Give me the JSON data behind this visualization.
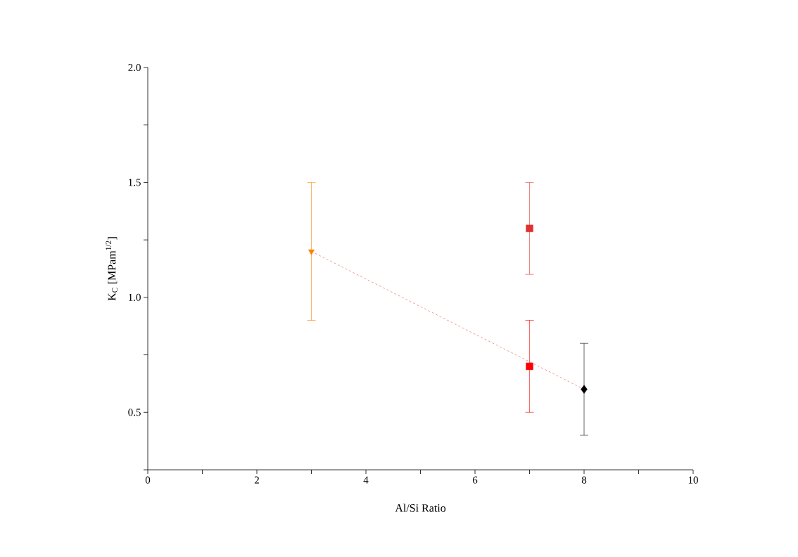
{
  "chart_data": {
    "type": "scatter",
    "xlabel": "Al/Si Ratio",
    "ylabel": "K$_{C}$ [MPam$^{1/2}$]",
    "xlim": [
      0,
      10
    ],
    "ylim": [
      0.25,
      2.0
    ],
    "xticks": [
      0,
      {
        "value": 1,
        "label": null
      },
      2,
      {
        "value": 3,
        "label": null
      },
      4,
      {
        "value": 5,
        "label": null
      },
      6,
      {
        "value": 7,
        "label": null
      },
      8,
      {
        "value": 9,
        "label": null
      },
      10
    ],
    "yticks": [
      {
        "value": 0.25,
        "label": null
      },
      {
        "value": 0.5,
        "label": "0.5"
      },
      {
        "value": 0.75,
        "label": null
      },
      {
        "value": 1.0,
        "label": "1.0"
      },
      {
        "value": 1.25,
        "label": null
      },
      {
        "value": 1.5,
        "label": "1.5"
      },
      {
        "value": 1.75,
        "label": null
      },
      {
        "value": 2.0,
        "label": "2.0"
      }
    ],
    "series": [
      {
        "type": "line",
        "color": "#f08080",
        "x": [
          3,
          8
        ],
        "values": [
          1.2,
          0.6
        ],
        "line_style": "dashed",
        "marker": "none"
      },
      {
        "color": "#ff8000",
        "x": [
          3
        ],
        "values": [
          1.2
        ],
        "errors": [
          0.3
        ],
        "marker": "triangle-down"
      },
      {
        "color": "#e03030",
        "x": [
          7
        ],
        "values": [
          1.3
        ],
        "errors": [
          0.2
        ],
        "marker": "square"
      },
      {
        "color": "#ff0000",
        "x": [
          7
        ],
        "values": [
          0.7
        ],
        "errors": [
          0.2
        ],
        "marker": "square"
      },
      {
        "color": "#000000",
        "x": [
          8
        ],
        "values": [
          0.6
        ],
        "errors": [
          0.2
        ],
        "marker": "diamond"
      }
    ]
  }
}
